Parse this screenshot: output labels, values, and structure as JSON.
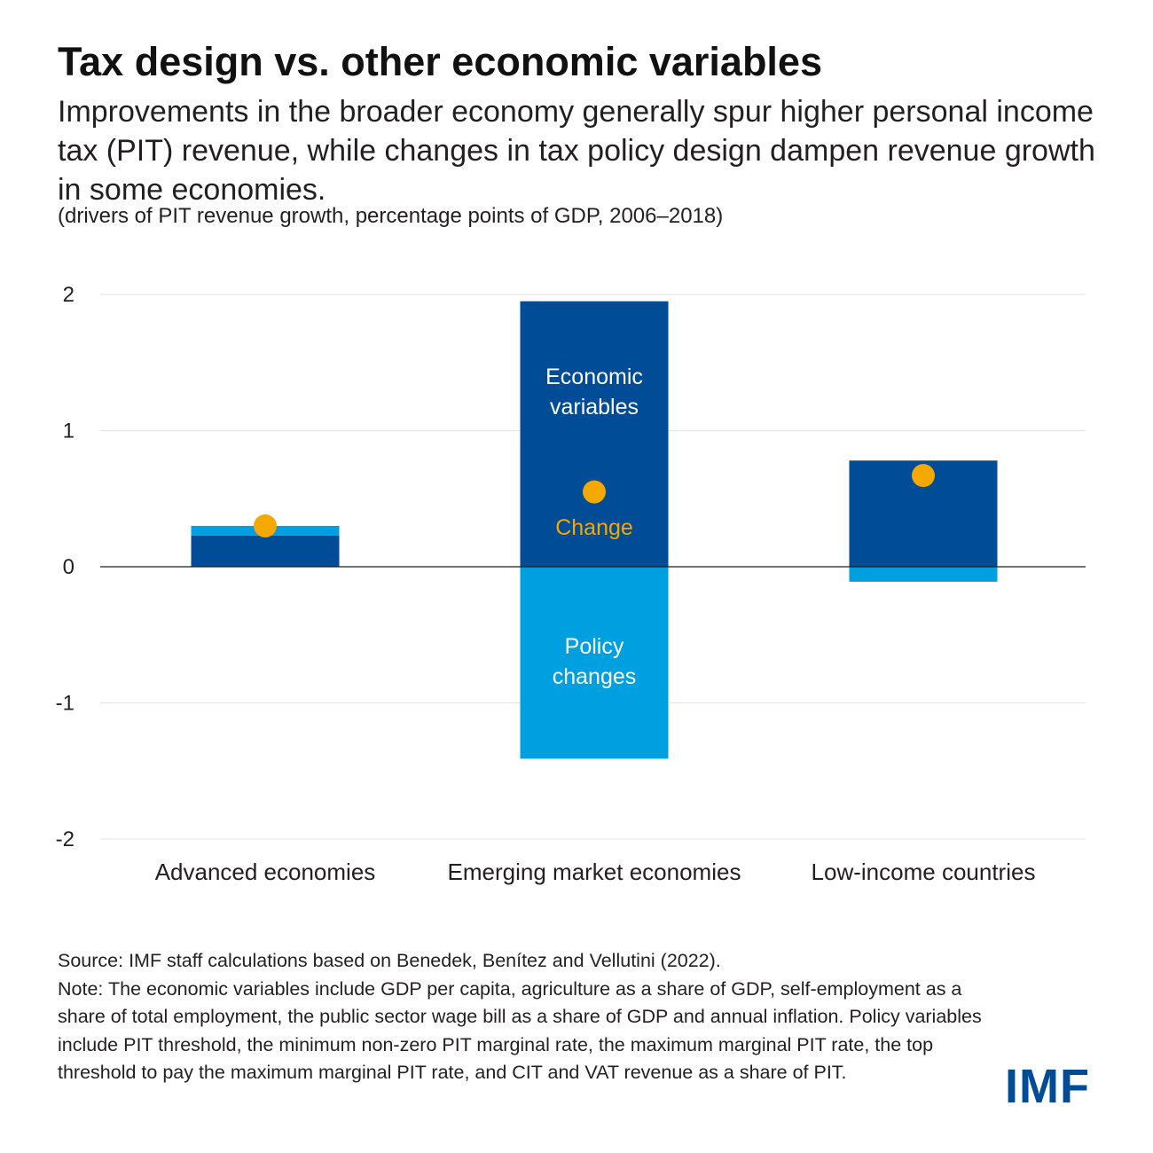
{
  "header": {
    "title": "Tax design vs. other economic variables",
    "subtitle": "Improvements in the broader economy generally spur higher personal income tax (PIT) revenue, while changes in tax policy design dampen revenue growth in some economies.",
    "units": "(drivers of PIT revenue growth, percentage points of GDP, 2006–2018)"
  },
  "chart_data": {
    "type": "bar",
    "stacked": true,
    "categories": [
      "Advanced economies",
      "Emerging market economies",
      "Low-income countries"
    ],
    "series": [
      {
        "name": "Economic variables",
        "values": [
          0.23,
          1.95,
          0.78
        ],
        "color": "#004c97"
      },
      {
        "name": "Policy changes",
        "values": [
          0.07,
          -1.41,
          -0.11
        ],
        "color": "#009fdf"
      }
    ],
    "change": {
      "name": "Change",
      "values": [
        0.3,
        0.55,
        0.67
      ],
      "color": "#f5a800"
    },
    "ylim": [
      -2,
      2
    ],
    "yticks": [
      2,
      1,
      0,
      -1,
      -2
    ],
    "ytick_labels": [
      "2",
      "1",
      "0",
      "-1",
      "-2"
    ],
    "grid": true,
    "legend": "inline labels in middle bar",
    "inline_labels": {
      "economic_line1": "Economic",
      "economic_line2": "variables",
      "change": "Change",
      "policy_line1": "Policy",
      "policy_line2": "changes"
    },
    "xlabel": "",
    "ylabel": ""
  },
  "footer": {
    "source": "Source: IMF staff calculations based on Benedek, Benítez and Vellutini (2022).",
    "note": "Note: The economic variables include GDP per capita, agriculture as a share of GDP, self-employment as a share of total employment, the public sector wage bill as a share of GDP and annual inflation. Policy variables include PIT threshold, the minimum non-zero PIT marginal rate, the maximum marginal PIT rate, the top threshold to pay the maximum marginal PIT rate, and CIT and VAT revenue as a share of PIT."
  },
  "logo": {
    "text": "IMF",
    "color": "#004c97"
  }
}
